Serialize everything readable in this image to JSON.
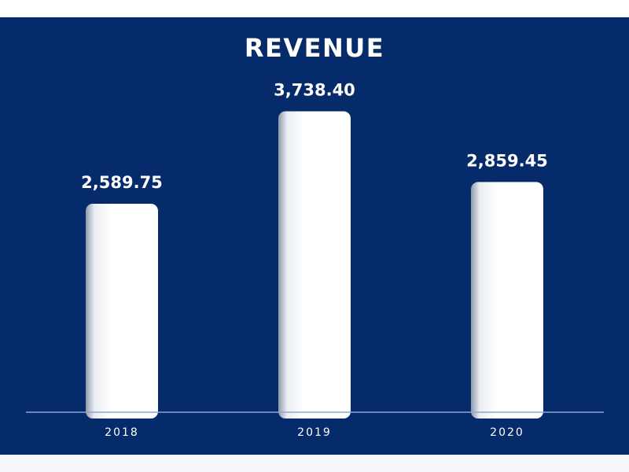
{
  "colors": {
    "background": "#062b6b",
    "bar": "#ffffff",
    "text": "#ffffff",
    "axis": "#8fa4d6"
  },
  "chart_data": {
    "type": "bar",
    "title": "REVENUE",
    "categories": [
      "2018",
      "2019",
      "2020"
    ],
    "values": [
      2589.75,
      3738.4,
      2859.45
    ],
    "value_labels": [
      "2,589.75",
      "3,738.40",
      "2,859.45"
    ],
    "xlabel": "",
    "ylabel": "",
    "ylim": [
      0,
      4000
    ],
    "grid": false,
    "legend": "none"
  }
}
